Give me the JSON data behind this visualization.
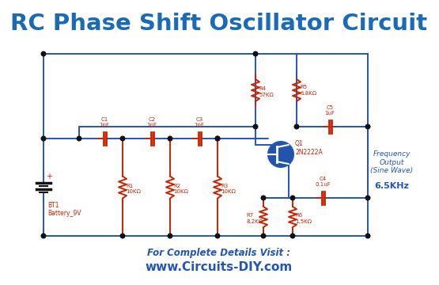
{
  "title": "RC Phase Shift Oscillator Circuit",
  "title_color": "#1a6ab5",
  "title_fontsize": 21,
  "bg_color": "#ffffff",
  "wire_color": "#2255bb",
  "component_color": "#cc2200",
  "dot_color": "#111111",
  "footer_bold": "For Complete Details Visit :",
  "footer_url": "www.Circuits-DIY.com",
  "footer_color": "#2255bb",
  "freq_label": "Frequency\nOutput\n(Sine Wave)",
  "freq_value": "6.5KHz",
  "transistor_label": "Q1\n2N2222A",
  "battery_label": "BT1\nBattery_9V",
  "C1": "C1\n1nF",
  "C2": "C2\n1nF",
  "C3": "C3\n1nF",
  "C4": "C4\n0.1uF",
  "C5": "C5\n1uF",
  "R1": "R1\n10KΩ",
  "R2": "R2\n10KΩ",
  "R3": "R3\n10KΩ",
  "R4": "R4\n57KΩ",
  "R5": "R5\n6.8KΩ",
  "R6": "R6\n1.5KΩ",
  "R7": "R7\n8.2KΩ"
}
